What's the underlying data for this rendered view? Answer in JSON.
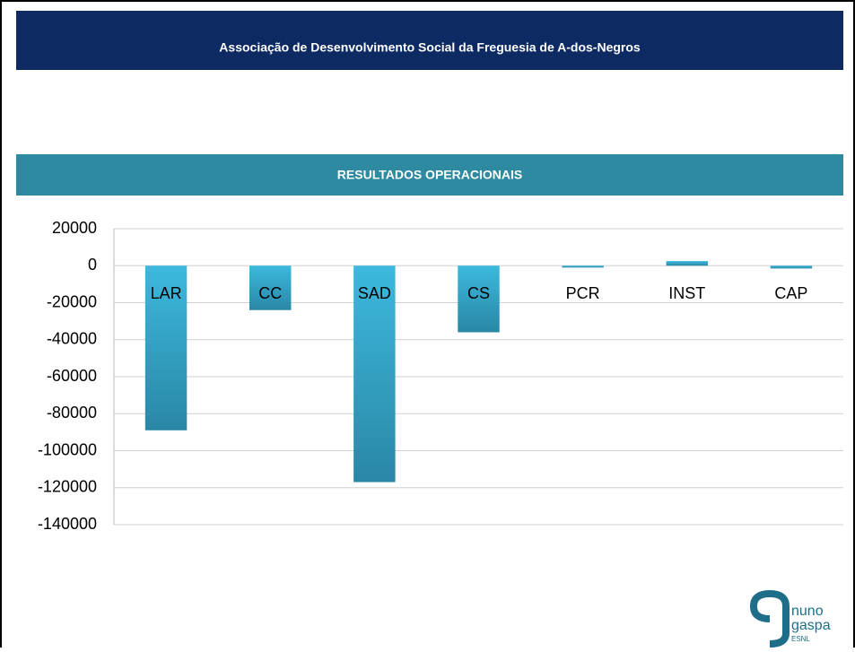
{
  "header": {
    "title": "Associação de Desenvolvimento Social da Freguesia de A-dos-Negros"
  },
  "chart_data": {
    "type": "bar",
    "title": "RESULTADOS OPERACIONAIS",
    "categories": [
      "LAR",
      "CC",
      "SAD",
      "CS",
      "PCR",
      "INST",
      "CAP"
    ],
    "values": [
      -89000,
      -24000,
      -117000,
      -36000,
      -1000,
      2500,
      -1500
    ],
    "color": "#33acd0",
    "ylim": [
      -140000,
      20000
    ],
    "yticks": [
      -140000,
      -120000,
      -100000,
      -80000,
      -60000,
      -40000,
      -20000,
      0,
      20000
    ],
    "grid": true
  },
  "logo": {
    "line1": "nuno",
    "line2": "gaspa",
    "line3": "ESNL"
  }
}
